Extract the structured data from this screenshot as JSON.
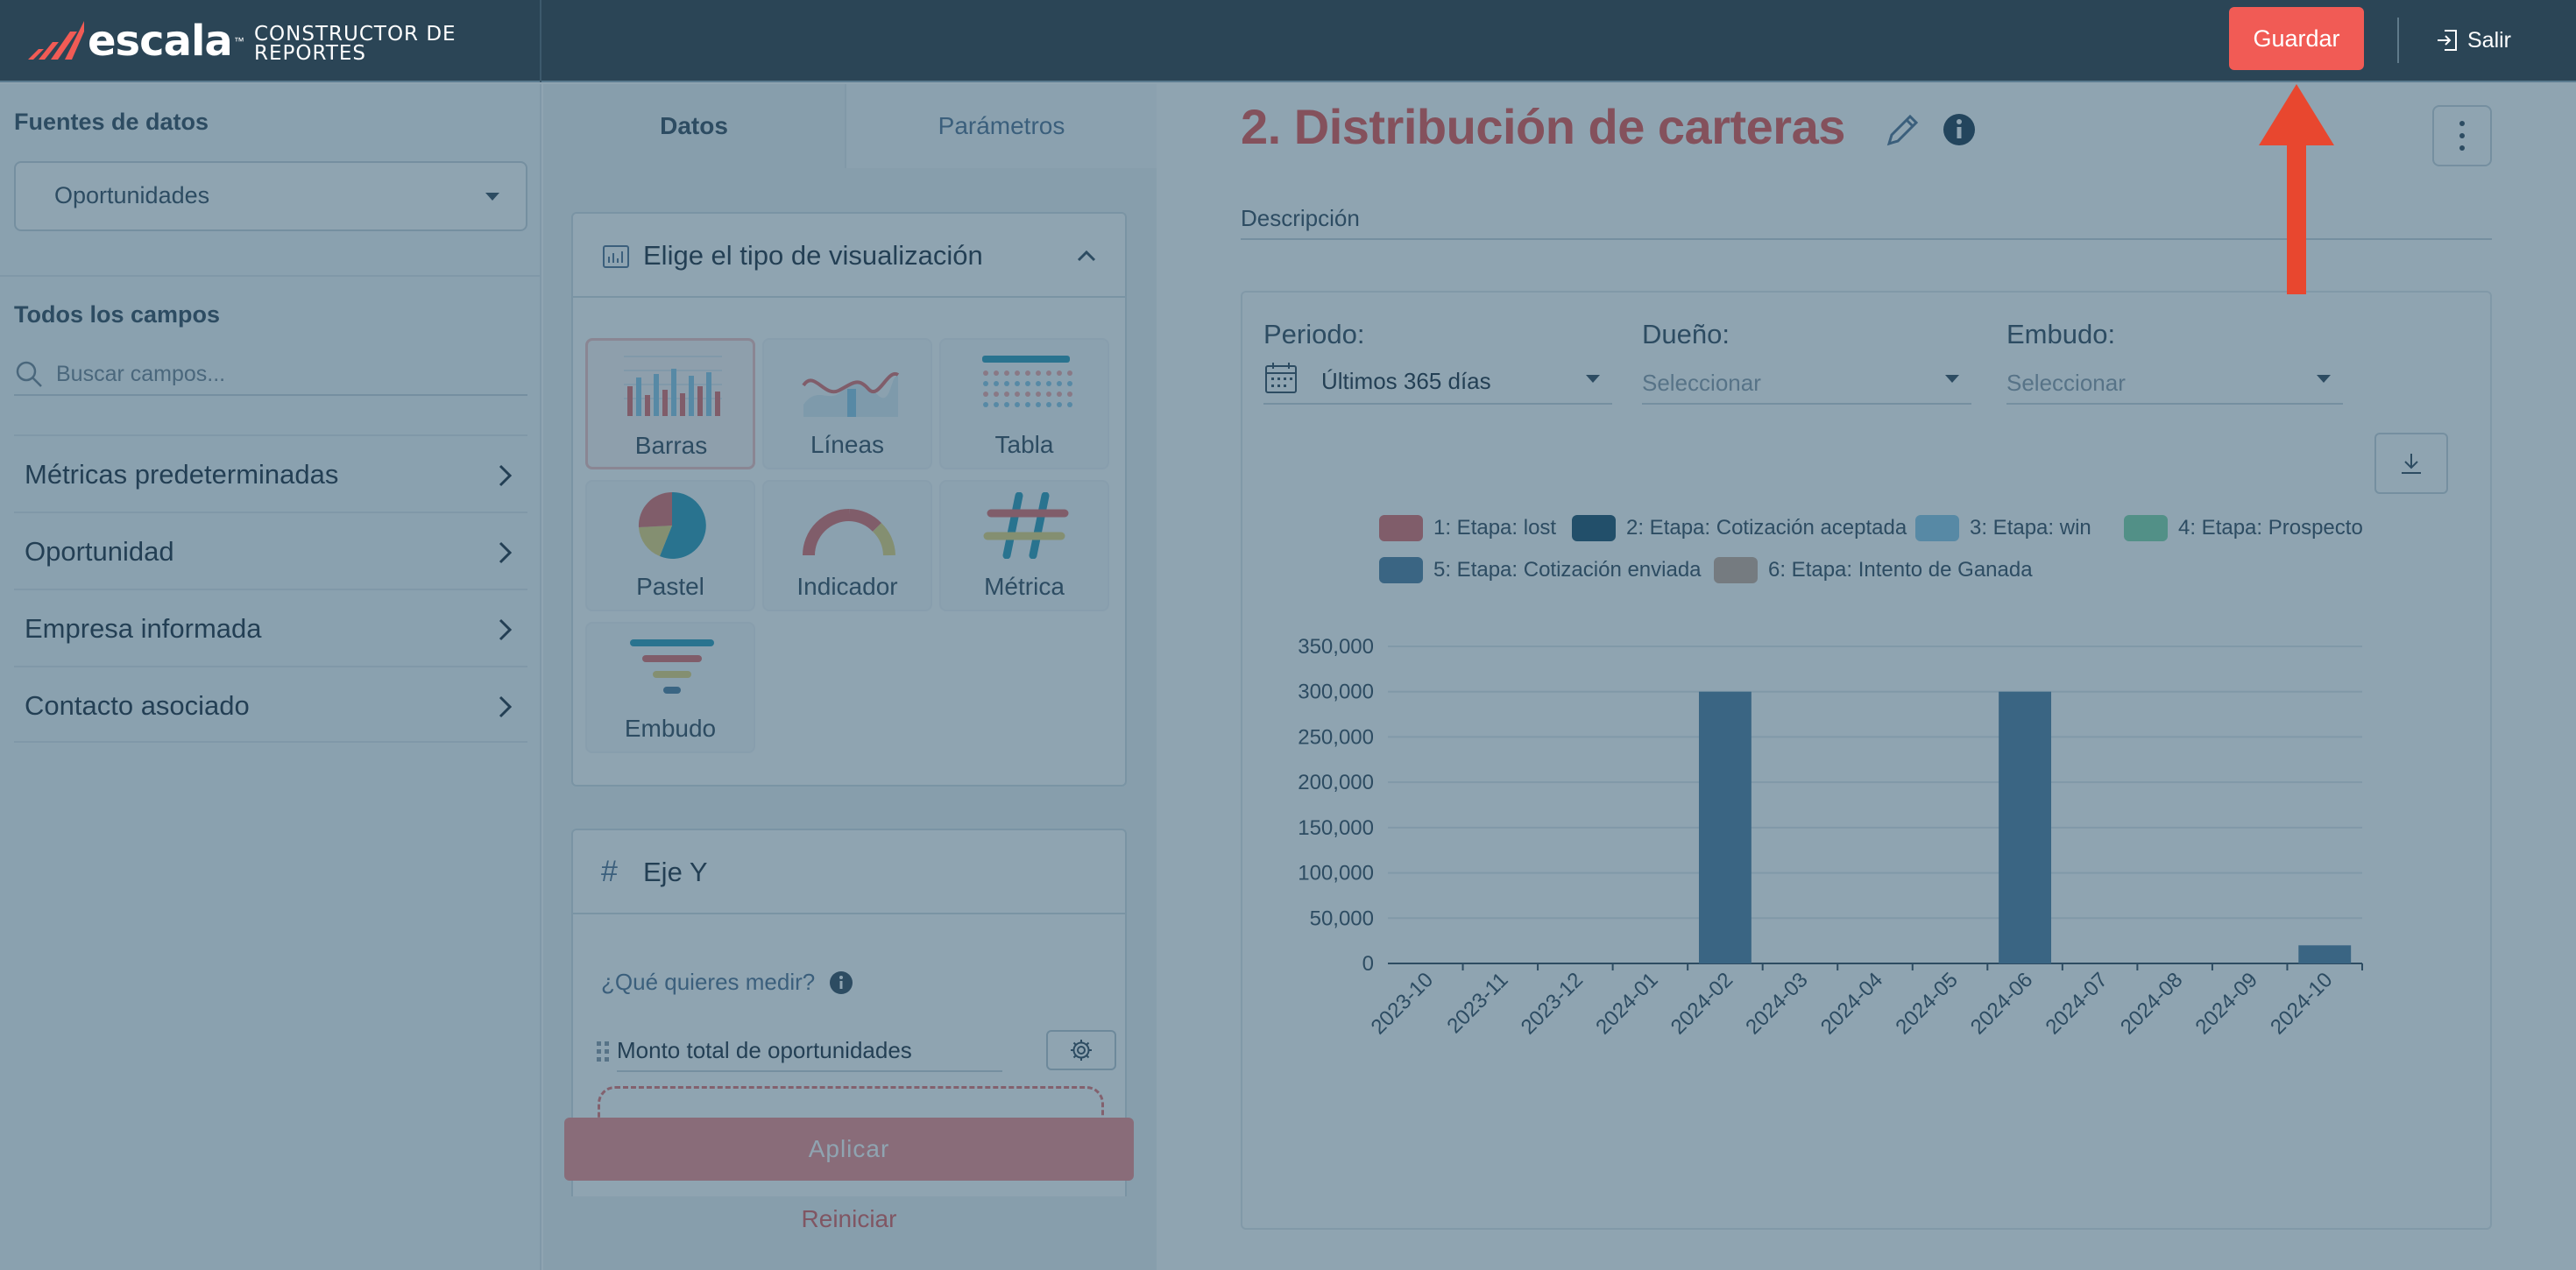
{
  "header": {
    "logo_text": "escala",
    "logo_tm": "™",
    "app_title": "CONSTRUCTOR DE REPORTES",
    "save_label": "Guardar",
    "exit_label": "Salir"
  },
  "sidebar": {
    "sources_title": "Fuentes de datos",
    "source_selected": "Oportunidades",
    "fields_title": "Todos los campos",
    "search_placeholder": "Buscar campos...",
    "groups": [
      {
        "label": "Métricas predeterminadas"
      },
      {
        "label": "Oportunidad"
      },
      {
        "label": "Empresa informada"
      },
      {
        "label": "Contacto asociado"
      }
    ]
  },
  "config": {
    "tabs": [
      {
        "label": "Datos",
        "active": true
      },
      {
        "label": "Parámetros",
        "active": false
      }
    ],
    "viz_title": "Elige el tipo de visualización",
    "viz_types": [
      {
        "label": "Barras",
        "icon": "bar-chart-icon",
        "selected": true
      },
      {
        "label": "Líneas",
        "icon": "line-chart-icon"
      },
      {
        "label": "Tabla",
        "icon": "table-icon"
      },
      {
        "label": "Pastel",
        "icon": "pie-chart-icon"
      },
      {
        "label": "Indicador",
        "icon": "gauge-icon"
      },
      {
        "label": "Métrica",
        "icon": "hash-icon"
      },
      {
        "label": "Embudo",
        "icon": "funnel-icon"
      }
    ],
    "y_axis_title": "Eje Y",
    "y_hash": "#",
    "y_question": "¿Qué quieres medir?",
    "metric_value": "Monto total de oportunidades",
    "apply_label": "Aplicar",
    "reset_label": "Reiniciar"
  },
  "report": {
    "title": "2. Distribución de carteras",
    "description_placeholder": "Descripción",
    "filters": {
      "period_label": "Periodo:",
      "period_value": "Últimos 365 días",
      "owner_label": "Dueño:",
      "owner_placeholder": "Seleccionar",
      "funnel_label": "Embudo:",
      "funnel_placeholder": "Seleccionar"
    }
  },
  "chart_data": {
    "type": "bar",
    "title": "",
    "xlabel": "",
    "ylabel": "",
    "categories": [
      "2023-10",
      "2023-11",
      "2023-12",
      "2024-01",
      "2024-02",
      "2024-03",
      "2024-04",
      "2024-05",
      "2024-06",
      "2024-07",
      "2024-08",
      "2024-09",
      "2024-10"
    ],
    "ylim": [
      0,
      350000
    ],
    "yticks": [
      0,
      50000,
      100000,
      150000,
      200000,
      250000,
      300000,
      350000
    ],
    "ytick_labels": [
      "0",
      "50,000",
      "100,000",
      "150,000",
      "200,000",
      "250,000",
      "300,000",
      "350,000"
    ],
    "grid": true,
    "legend_position": "top",
    "legend": [
      {
        "name": "1: Etapa: lost",
        "color": "#e06b6b"
      },
      {
        "name": "2: Etapa: Cotización aceptada",
        "color": "#1d4e6b"
      },
      {
        "name": "3: Etapa: win",
        "color": "#8ac7e6"
      },
      {
        "name": "4: Etapa: Prospecto",
        "color": "#7fd6a8"
      },
      {
        "name": "5: Etapa: Cotización enviada",
        "color": "#4f7c9f"
      },
      {
        "name": "6: Etapa: Intento de Ganada",
        "color": "#c9a99a"
      }
    ],
    "series": [
      {
        "name": "5: Etapa: Cotización enviada",
        "color": "#4f7c9f",
        "values": [
          0,
          0,
          0,
          0,
          300000,
          0,
          0,
          0,
          300000,
          0,
          0,
          0,
          20000
        ]
      }
    ]
  }
}
